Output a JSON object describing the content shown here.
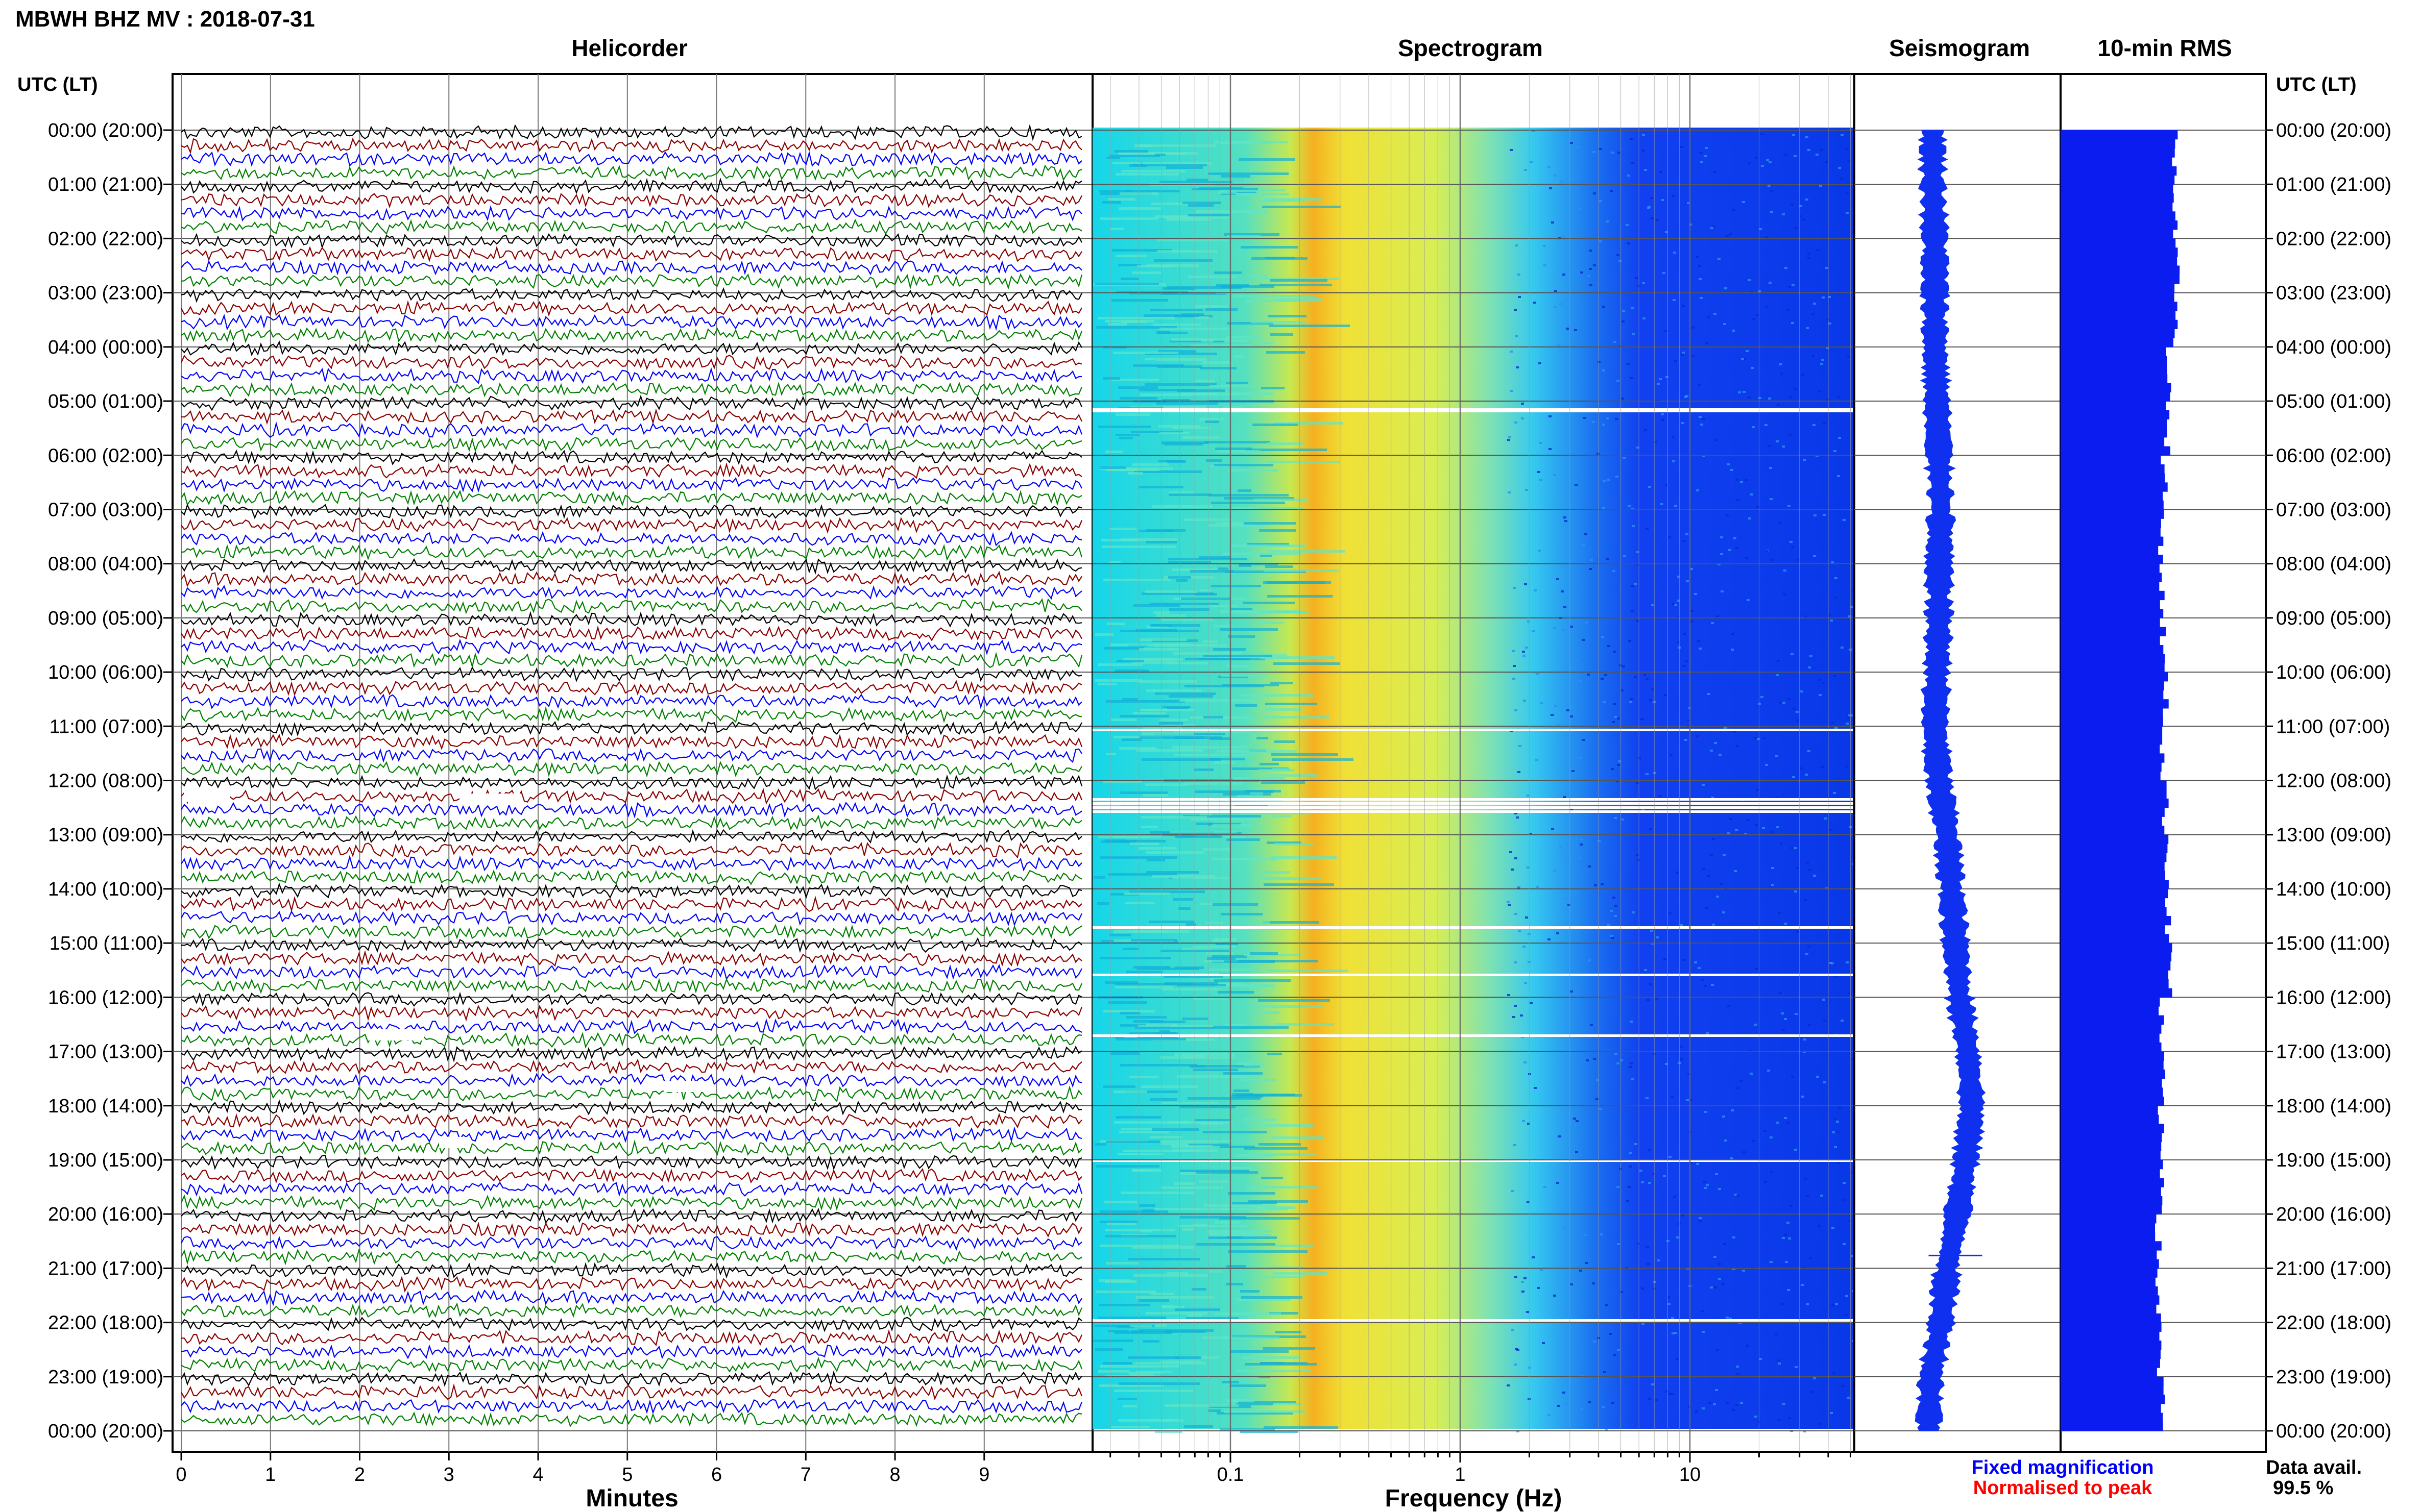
{
  "header": {
    "title": "MBWH BHZ MV : 2018-07-31"
  },
  "panels": {
    "helicorder": "Helicorder",
    "spectrogram": "Spectrogram",
    "seismogram": "Seismogram",
    "rms": "10-min RMS"
  },
  "time_axis": {
    "header_left": "UTC (LT)",
    "header_right": "UTC (LT)",
    "labels": [
      "00:00 (20:00)",
      "01:00 (21:00)",
      "02:00 (22:00)",
      "03:00 (23:00)",
      "04:00 (00:00)",
      "05:00 (01:00)",
      "06:00 (02:00)",
      "07:00 (03:00)",
      "08:00 (04:00)",
      "09:00 (05:00)",
      "10:00 (06:00)",
      "11:00 (07:00)",
      "12:00 (08:00)",
      "13:00 (09:00)",
      "14:00 (10:00)",
      "15:00 (11:00)",
      "16:00 (12:00)",
      "17:00 (13:00)",
      "18:00 (14:00)",
      "19:00 (15:00)",
      "20:00 (16:00)",
      "21:00 (17:00)",
      "22:00 (18:00)",
      "23:00 (19:00)",
      "00:00 (20:00)"
    ]
  },
  "helicorder_axis": {
    "xlabel": "Minutes",
    "ticks": [
      "0",
      "1",
      "2",
      "3",
      "4",
      "5",
      "6",
      "7",
      "8",
      "9"
    ],
    "trace_colors": [
      "#000000",
      "#8b0000",
      "#0000ff",
      "#008000"
    ]
  },
  "spectrogram_axis": {
    "xlabel": "Frequency (Hz)",
    "ticks": [
      "0.1",
      "1",
      "10"
    ],
    "colors": [
      "#00d8e8",
      "#f0e020",
      "#f08010",
      "#30c0f0",
      "#1040f0"
    ]
  },
  "legend": {
    "fixed": "Fixed magnification",
    "fixed_color": "#0000ff",
    "normalised": "Normalised to peak",
    "normalised_color": "#ff0000",
    "data_avail_label": "Data avail.",
    "data_avail_value": "99.5 %"
  },
  "chart_data": {
    "type": "bar",
    "title": "10-min RMS",
    "xscale": "linear",
    "yscale": "time (UTC), 00:00 at top to 00:00 at bottom",
    "grid": true,
    "categories": [
      "00:00",
      "01:00",
      "02:00",
      "03:00",
      "04:00",
      "05:00",
      "06:00",
      "07:00",
      "08:00",
      "09:00",
      "10:00",
      "11:00",
      "12:00",
      "13:00",
      "14:00",
      "15:00",
      "16:00",
      "17:00",
      "18:00",
      "19:00",
      "20:00",
      "21:00",
      "22:00",
      "23:00"
    ],
    "series": [
      {
        "name": "Fixed magnification",
        "values": [
          0.96,
          0.97,
          0.98,
          0.96,
          0.91,
          0.9,
          0.87,
          0.85,
          0.85,
          0.86,
          0.88,
          0.86,
          0.88,
          0.9,
          0.9,
          0.92,
          0.84,
          0.85,
          0.84,
          0.86,
          0.82,
          0.82,
          0.83,
          0.85
        ]
      }
    ],
    "seismogram_offset": [
      0.38,
      0.38,
      0.39,
      0.39,
      0.39,
      0.4,
      0.41,
      0.42,
      0.41,
      0.41,
      0.4,
      0.39,
      0.41,
      0.45,
      0.47,
      0.49,
      0.51,
      0.55,
      0.57,
      0.54,
      0.5,
      0.45,
      0.42,
      0.37,
      0.36
    ]
  }
}
